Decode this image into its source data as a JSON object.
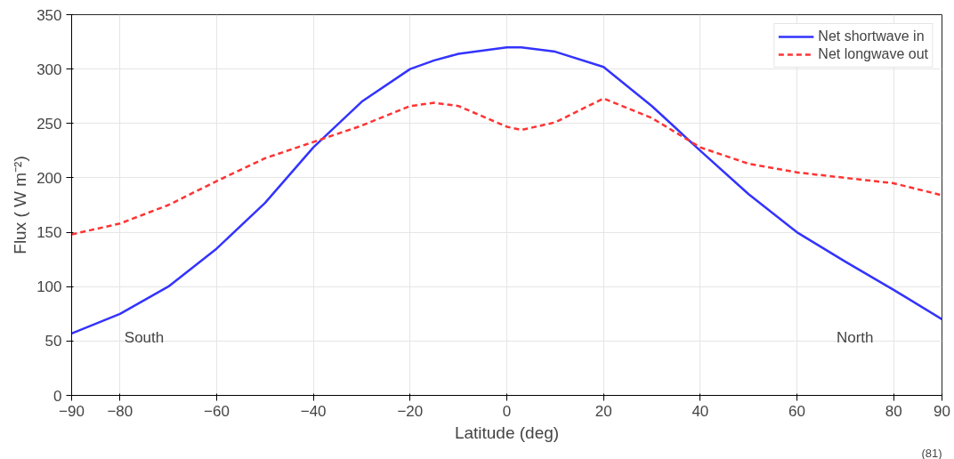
{
  "chart_data": {
    "type": "line",
    "xlabel": "Latitude (deg)",
    "ylabel": "Flux ( W m⁻²)",
    "x": [
      -90,
      -80,
      -70,
      -60,
      -50,
      -40,
      -30,
      -20,
      -15,
      -10,
      0,
      3,
      10,
      20,
      30,
      40,
      50,
      60,
      70,
      80,
      90
    ],
    "series": [
      {
        "name": "Net shortwave in",
        "color": "#3333ff",
        "line_style": "solid",
        "values": [
          57,
          75,
          100,
          135,
          177,
          228,
          270,
          300,
          308,
          314,
          320,
          320,
          316,
          302,
          266,
          225,
          185,
          150,
          123,
          97,
          70
        ]
      },
      {
        "name": "Net longwave out",
        "color": "#ff3333",
        "line_style": "dashed",
        "values": [
          148,
          158,
          175,
          197,
          218,
          233,
          248,
          266,
          269,
          266,
          247,
          244,
          251,
          273,
          255,
          228,
          213,
          205,
          200,
          195,
          184
        ]
      }
    ],
    "xlim": [
      -90,
      90
    ],
    "ylim": [
      0,
      350
    ],
    "xticks": [
      -90,
      -80,
      -60,
      -40,
      -20,
      0,
      20,
      40,
      60,
      80,
      90
    ],
    "yticks": [
      0,
      50,
      100,
      150,
      200,
      250,
      300,
      350
    ],
    "grid": true,
    "legend": "top right",
    "annotations": [
      "South",
      "North",
      "(81)"
    ]
  }
}
